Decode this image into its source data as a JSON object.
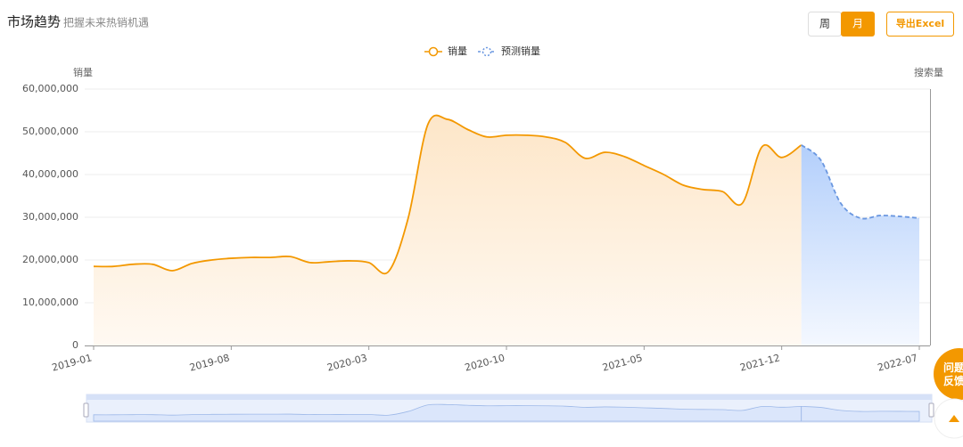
{
  "header": {
    "title": "市场趋势",
    "subtitle": "把握未来热销机遇"
  },
  "controls": {
    "week": "周",
    "month": "月",
    "export": "导出Excel"
  },
  "feedback": "问题反馈",
  "chart_data": {
    "type": "line",
    "y_label": "销量",
    "y2_label": "搜索量",
    "categories": [
      "2019-01",
      null,
      null,
      null,
      null,
      null,
      null,
      "2019-08",
      null,
      null,
      null,
      null,
      null,
      null,
      "2020-03",
      null,
      null,
      null,
      null,
      null,
      null,
      "2020-10",
      null,
      null,
      null,
      null,
      null,
      null,
      "2021-05",
      null,
      null,
      null,
      null,
      null,
      null,
      "2021-12",
      null,
      null,
      null,
      null,
      null,
      null,
      "2022-07"
    ],
    "series": [
      {
        "name": "销量",
        "color": "#f39800",
        "dashed": false,
        "values": [
          18500000,
          18500000,
          19000000,
          19000000,
          17500000,
          19200000,
          20000000,
          20400000,
          20600000,
          20600000,
          20800000,
          19400000,
          19600000,
          19800000,
          19400000,
          17300000,
          29800000,
          51700000,
          52900000,
          50600000,
          48800000,
          49200000,
          49200000,
          48800000,
          47500000,
          43800000,
          45200000,
          44200000,
          42100000,
          40000000,
          37500000,
          36500000,
          36000000,
          33300000,
          46500000,
          44000000,
          46900000,
          null,
          null,
          null,
          null,
          null,
          null
        ]
      },
      {
        "name": "预测销量",
        "color": "#6a97e0",
        "dashed": true,
        "values": [
          null,
          null,
          null,
          null,
          null,
          null,
          null,
          null,
          null,
          null,
          null,
          null,
          null,
          null,
          null,
          null,
          null,
          null,
          null,
          null,
          null,
          null,
          null,
          null,
          null,
          null,
          null,
          null,
          null,
          null,
          null,
          null,
          null,
          null,
          null,
          null,
          46900000,
          43300000,
          33300000,
          29800000,
          30400000,
          30200000,
          29800000
        ]
      }
    ],
    "ylim": [
      0,
      60000000
    ],
    "yticks": [
      0,
      {
        "value": 10000000,
        "label": "10,000,000"
      },
      {
        "value": 20000000,
        "label": "20,000,000"
      },
      {
        "value": 30000000,
        "label": "30,000,000"
      },
      {
        "value": 40000000,
        "label": "40,000,000"
      },
      {
        "value": 50000000,
        "label": "50,000,000"
      },
      {
        "value": 60000000,
        "label": "60,000,000"
      }
    ],
    "grid": true
  }
}
